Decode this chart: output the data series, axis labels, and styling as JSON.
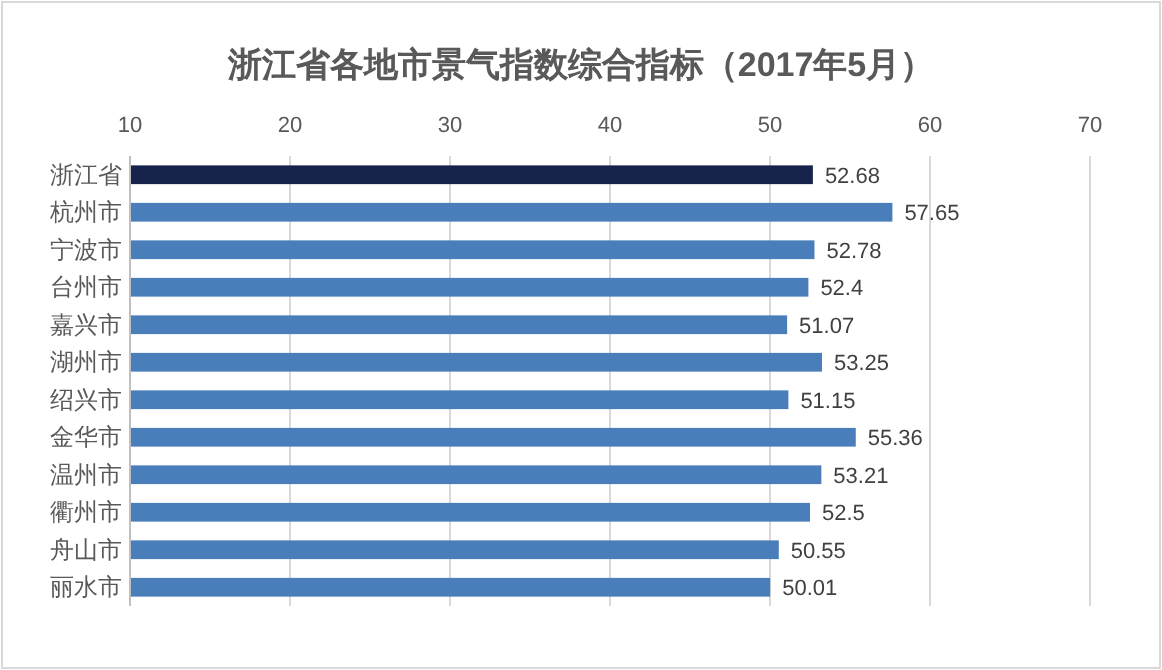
{
  "chart_data": {
    "type": "bar",
    "orientation": "horizontal",
    "title": "浙江省各地市景气指数综合指标（2017年5月）",
    "categories": [
      "浙江省",
      "杭州市",
      "宁波市",
      "台州市",
      "嘉兴市",
      "湖州市",
      "绍兴市",
      "金华市",
      "温州市",
      "衢州市",
      "舟山市",
      "丽水市"
    ],
    "values": [
      52.68,
      57.65,
      52.78,
      52.4,
      51.07,
      53.25,
      51.15,
      55.36,
      53.21,
      52.5,
      50.55,
      50.01
    ],
    "colors": [
      "#17234a",
      "#4a7ebb",
      "#4a7ebb",
      "#4a7ebb",
      "#4a7ebb",
      "#4a7ebb",
      "#4a7ebb",
      "#4a7ebb",
      "#4a7ebb",
      "#4a7ebb",
      "#4a7ebb",
      "#4a7ebb"
    ],
    "xlim": [
      10,
      70
    ],
    "xticks": [
      10,
      20,
      30,
      40,
      50,
      60,
      70
    ],
    "grid": "x",
    "data_labels": true
  }
}
